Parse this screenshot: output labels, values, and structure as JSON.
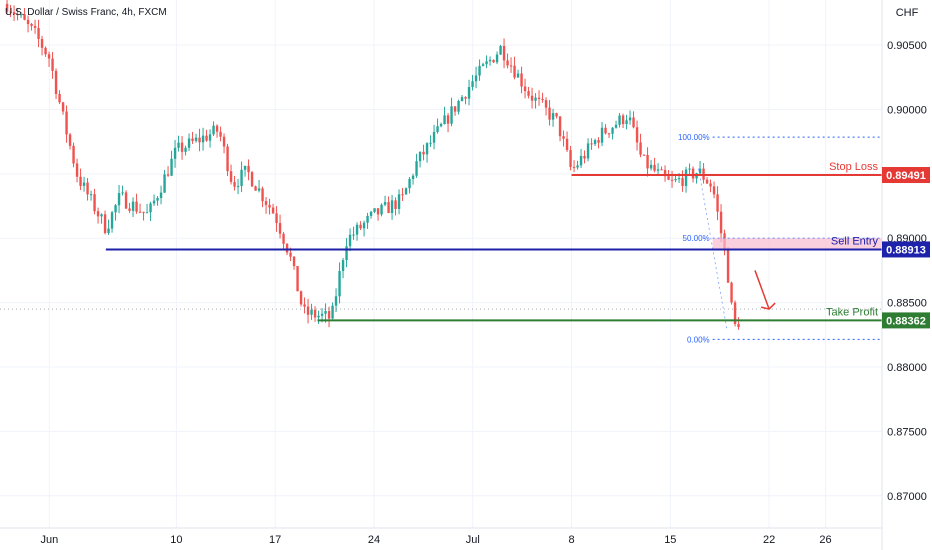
{
  "header": {
    "symbol_title": "U.S. Dollar / Swiss Franc, 4h, FXCM",
    "currency": "CHF"
  },
  "colors": {
    "up": "#26a69a",
    "down": "#ef5350",
    "stop_loss": "#e53935",
    "sell_entry": "#1e22aa",
    "take_profit": "#2e7d32",
    "fib": "#2962ff",
    "arrow": "#e53935"
  },
  "chart_data": {
    "type": "candlestick",
    "title": "U.S. Dollar / Swiss Franc, 4h, FXCM",
    "ylim": [
      0.8675,
      0.9085
    ],
    "y_ticks": [
      "0.87000",
      "0.87500",
      "0.88000",
      "0.88500",
      "0.89000",
      "0.89500",
      "0.90000",
      "0.90500"
    ],
    "x_ticks": [
      "Jun",
      "10",
      "17",
      "24",
      "Jul",
      "8",
      "15",
      "22",
      "26"
    ],
    "price_path_points": [
      {
        "t": "2024-05-29",
        "p": 0.9082
      },
      {
        "t": "2024-05-31",
        "p": 0.9058
      },
      {
        "t": "2024-06-01",
        "p": 0.904
      },
      {
        "t": "2024-06-02",
        "p": 0.8992
      },
      {
        "t": "2024-06-03",
        "p": 0.8948
      },
      {
        "t": "2024-06-05",
        "p": 0.8908
      },
      {
        "t": "2024-06-06",
        "p": 0.8932
      },
      {
        "t": "2024-06-08",
        "p": 0.8918
      },
      {
        "t": "2024-06-10",
        "p": 0.8968
      },
      {
        "t": "2024-06-13",
        "p": 0.8984
      },
      {
        "t": "2024-06-14",
        "p": 0.8942
      },
      {
        "t": "2024-06-15",
        "p": 0.8952
      },
      {
        "t": "2024-06-17",
        "p": 0.8918
      },
      {
        "t": "2024-06-18",
        "p": 0.8888
      },
      {
        "t": "2024-06-19",
        "p": 0.8842
      },
      {
        "t": "2024-06-21",
        "p": 0.8838
      },
      {
        "t": "2024-06-22",
        "p": 0.8898
      },
      {
        "t": "2024-06-24",
        "p": 0.8918
      },
      {
        "t": "2024-06-26",
        "p": 0.893
      },
      {
        "t": "2024-06-27",
        "p": 0.8958
      },
      {
        "t": "2024-06-29",
        "p": 0.899
      },
      {
        "t": "2024-07-01",
        "p": 0.9022
      },
      {
        "t": "2024-07-03",
        "p": 0.9048
      },
      {
        "t": "2024-07-05",
        "p": 0.9012
      },
      {
        "t": "2024-07-07",
        "p": 0.899
      },
      {
        "t": "2024-07-08",
        "p": 0.8952
      },
      {
        "t": "2024-07-10",
        "p": 0.898
      },
      {
        "t": "2024-07-12",
        "p": 0.8996
      },
      {
        "t": "2024-07-13",
        "p": 0.896
      },
      {
        "t": "2024-07-15",
        "p": 0.8942
      },
      {
        "t": "2024-07-17",
        "p": 0.8952
      },
      {
        "t": "2024-07-18",
        "p": 0.894
      },
      {
        "t": "2024-07-19",
        "p": 0.888
      },
      {
        "t": "2024-07-19T12:00",
        "p": 0.883
      },
      {
        "t": "2024-07-20",
        "p": 0.8838
      }
    ],
    "levels": [
      {
        "label": "Stop Loss",
        "value": "0.89491",
        "price": 0.89491,
        "color_key": "stop_loss",
        "from": "2024-07-08"
      },
      {
        "label": "Sell Entry",
        "value": "0.88913",
        "price": 0.88913,
        "color_key": "sell_entry",
        "from": "2024-06-05"
      },
      {
        "label": "Take Profit",
        "value": "0.88362",
        "price": 0.88362,
        "color_key": "take_profit",
        "from": "2024-06-20"
      }
    ],
    "fibonacci": [
      {
        "label": "100.00%",
        "price": 0.89785
      },
      {
        "label": "50.00%",
        "price": 0.89
      },
      {
        "label": "0.00%",
        "price": 0.88215
      }
    ],
    "last_price": 0.8845,
    "annotations": [
      "Stop Loss",
      "Sell Entry",
      "Take Profit"
    ]
  }
}
